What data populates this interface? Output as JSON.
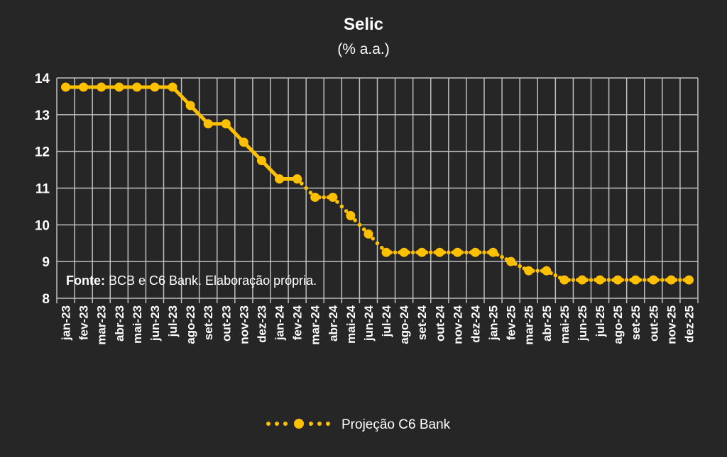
{
  "chart_data": {
    "type": "line",
    "title": "Selic",
    "subtitle": "(% a.a.)",
    "xlabel": "",
    "ylabel": "",
    "ylim": [
      8,
      14
    ],
    "yticks": [
      "8",
      "9",
      "10",
      "11",
      "12",
      "13",
      "14"
    ],
    "grid": true,
    "legend_position": "bottom",
    "categories": [
      "jan-23",
      "fev-23",
      "mar-23",
      "abr-23",
      "mai-23",
      "jun-23",
      "jul-23",
      "ago-23",
      "set-23",
      "out-23",
      "nov-23",
      "dez-23",
      "jan-24",
      "fev-24",
      "mar-24",
      "abr-24",
      "mai-24",
      "jun-24",
      "jul-24",
      "ago-24",
      "set-24",
      "out-24",
      "nov-24",
      "dez-24",
      "jan-25",
      "fev-25",
      "mar-25",
      "abr-25",
      "mai-25",
      "jun-25",
      "jul-25",
      "ago-25",
      "set-25",
      "out-25",
      "nov-25",
      "dez-25"
    ],
    "series": [
      {
        "name": "",
        "style": "solid",
        "color": "#FFC000",
        "values": [
          13.75,
          13.75,
          13.75,
          13.75,
          13.75,
          13.75,
          13.75,
          13.25,
          12.75,
          12.75,
          12.25,
          11.75,
          11.25,
          11.25,
          null,
          null,
          null,
          null,
          null,
          null,
          null,
          null,
          null,
          null,
          null,
          null,
          null,
          null,
          null,
          null,
          null,
          null,
          null,
          null,
          null,
          null
        ]
      },
      {
        "name": "Projeção C6 Bank",
        "style": "dotted",
        "color": "#FFC000",
        "values": [
          null,
          null,
          null,
          null,
          null,
          null,
          null,
          null,
          null,
          null,
          null,
          null,
          null,
          11.25,
          10.75,
          10.75,
          10.25,
          9.75,
          9.25,
          9.25,
          9.25,
          9.25,
          9.25,
          9.25,
          9.25,
          9.0,
          8.75,
          8.75,
          8.5,
          8.5,
          8.5,
          8.5,
          8.5,
          8.5,
          8.5,
          8.5
        ]
      }
    ],
    "annotation": {
      "label_bold": "Fonte:",
      "label_rest": " BCB e C6 Bank. Elaboração própria."
    }
  }
}
